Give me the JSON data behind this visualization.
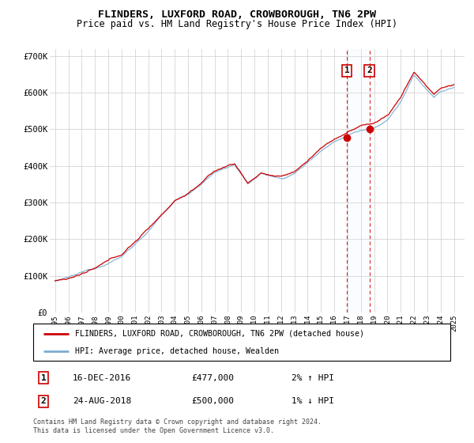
{
  "title": "FLINDERS, LUXFORD ROAD, CROWBOROUGH, TN6 2PW",
  "subtitle": "Price paid vs. HM Land Registry's House Price Index (HPI)",
  "legend_line1": "FLINDERS, LUXFORD ROAD, CROWBOROUGH, TN6 2PW (detached house)",
  "legend_line2": "HPI: Average price, detached house, Wealden",
  "annotation1_date": "16-DEC-2016",
  "annotation1_price": "£477,000",
  "annotation1_hpi": "2% ↑ HPI",
  "annotation1_year": 2016.96,
  "annotation1_price_val": 477000,
  "annotation2_date": "24-AUG-2018",
  "annotation2_price": "£500,000",
  "annotation2_hpi": "1% ↓ HPI",
  "annotation2_year": 2018.64,
  "annotation2_price_val": 500000,
  "footer": "Contains HM Land Registry data © Crown copyright and database right 2024.\nThis data is licensed under the Open Government Licence v3.0.",
  "ylim": [
    0,
    720000
  ],
  "yticks": [
    0,
    100000,
    200000,
    300000,
    400000,
    500000,
    600000,
    700000
  ],
  "ytick_labels": [
    "£0",
    "£100K",
    "£200K",
    "£300K",
    "£400K",
    "£500K",
    "£600K",
    "£700K"
  ],
  "hpi_color": "#7aaed4",
  "price_color": "#cc0000",
  "annotation_color": "#cc0000",
  "bg_color": "#ffffff",
  "grid_color": "#cccccc",
  "annotation_fill": "#ddeeff",
  "xlim_left": 1994.6,
  "xlim_right": 2025.8
}
